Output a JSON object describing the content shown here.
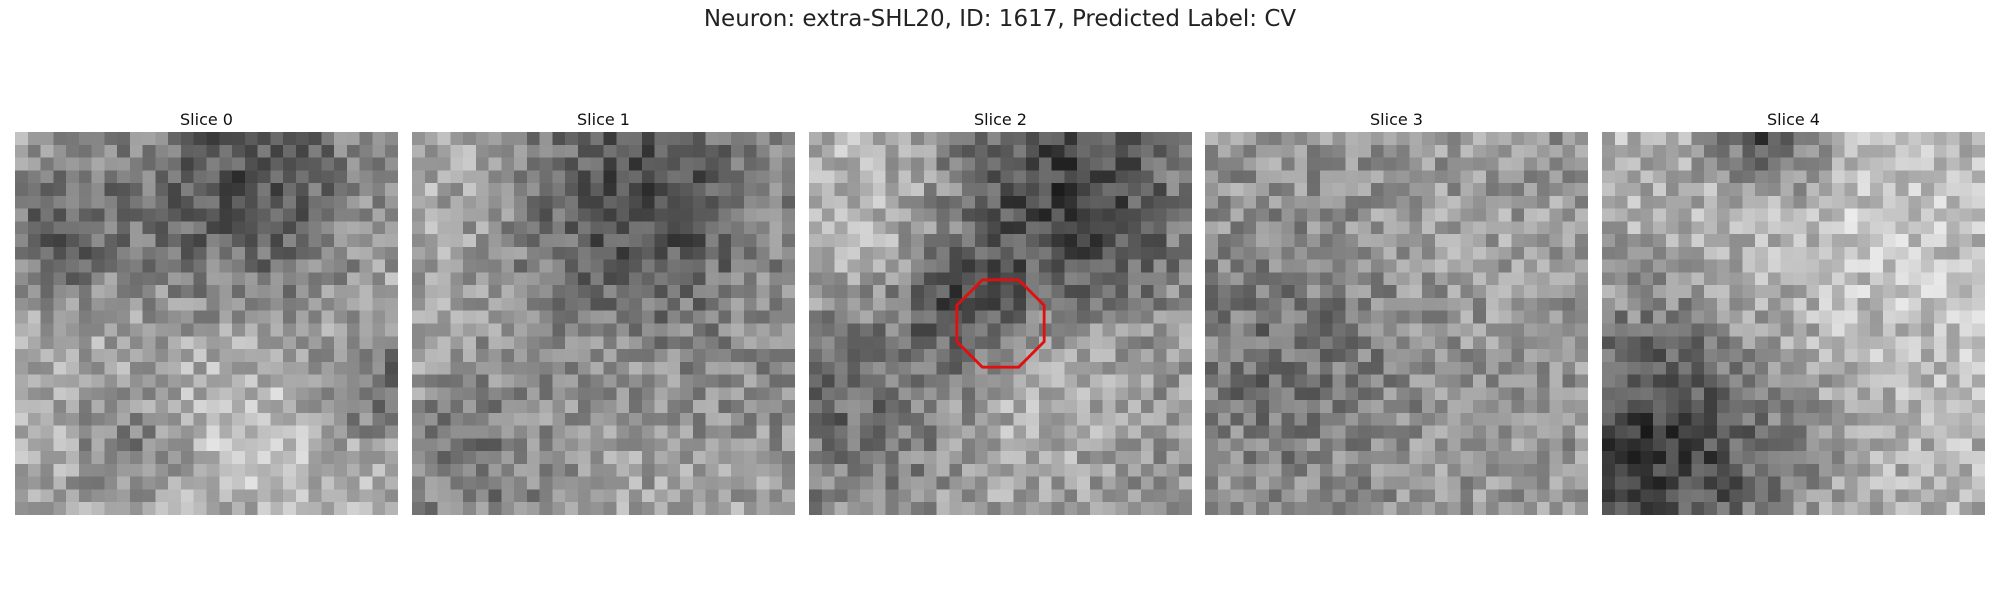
{
  "title": "Neuron: extra-SHL20, ID: 1617, Predicted Label: CV",
  "panels": [
    {
      "label": "Slice 0"
    },
    {
      "label": "Slice 1"
    },
    {
      "label": "Slice 2"
    },
    {
      "label": "Slice 3"
    },
    {
      "label": "Slice 4"
    }
  ]
}
